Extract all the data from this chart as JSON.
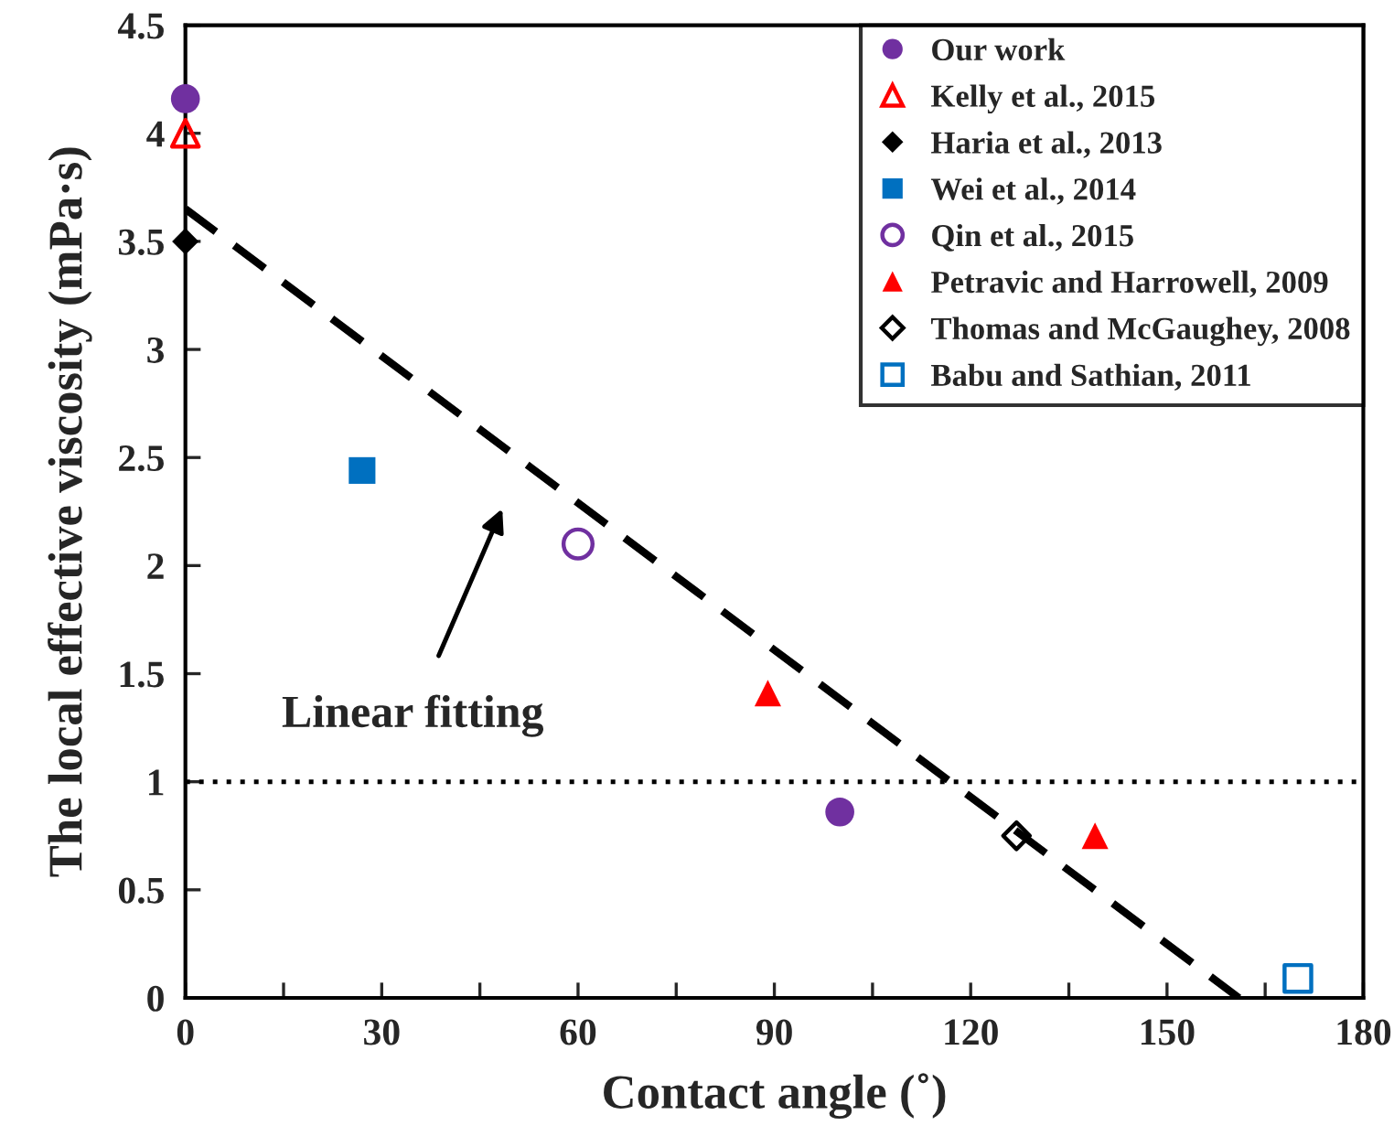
{
  "chart_data": {
    "type": "scatter",
    "xlabel": "Contact angle (˚)",
    "ylabel": "The local effective viscosity (mPa·s)",
    "xlim": [
      0,
      180
    ],
    "ylim": [
      0,
      4.5
    ],
    "xticks": [
      0,
      {
        "value": 15,
        "label": null
      },
      30,
      {
        "value": 45,
        "label": null
      },
      60,
      {
        "value": 75,
        "label": null
      },
      90,
      {
        "value": 105,
        "label": null
      },
      120,
      {
        "value": 135,
        "label": null
      },
      150,
      {
        "value": 165,
        "label": null
      },
      180
    ],
    "yticks": [
      0,
      0.5,
      1,
      1.5,
      2,
      2.5,
      3,
      3.5,
      4,
      4.5
    ],
    "grid": false,
    "legend": "top right",
    "series": [
      {
        "name": "Our work",
        "color": "#7030a0",
        "marker": "circle",
        "x": [
          0,
          100
        ],
        "values": [
          4.16,
          0.86
        ]
      },
      {
        "name": "Kelly et al., 2015",
        "color": "#ff0000",
        "marker": "triangle-open",
        "x": [
          0
        ],
        "values": [
          4.0
        ]
      },
      {
        "name": "Haria et al., 2013",
        "color": "#000000",
        "marker": "diamond",
        "x": [
          0
        ],
        "values": [
          3.5
        ]
      },
      {
        "name": "Wei et al., 2014",
        "color": "#0070c0",
        "marker": "square",
        "x": [
          27
        ],
        "values": [
          2.44
        ]
      },
      {
        "name": "Qin et al., 2015",
        "color": "#7030a0",
        "marker": "circle-open",
        "x": [
          60
        ],
        "values": [
          2.1
        ]
      },
      {
        "name": "Petravic and Harrowell, 2009",
        "color": "#ff0000",
        "marker": "triangle",
        "x": [
          89,
          139
        ],
        "values": [
          1.41,
          0.75
        ]
      },
      {
        "name": "Thomas and McGaughey, 2008",
        "color": "#000000",
        "marker": "diamond-open",
        "x": [
          127
        ],
        "values": [
          0.75
        ]
      },
      {
        "name": "Babu and Sathian, 2011",
        "color": "#0070c0",
        "marker": "square-open",
        "x": [
          170
        ],
        "values": [
          0.09
        ]
      },
      {
        "type": "line",
        "color": "#000000",
        "line_style": "dashed",
        "x": [
          0,
          161
        ],
        "values": [
          3.65,
          0
        ]
      }
    ],
    "ref_lines": [
      {
        "axis": "y",
        "value": 1,
        "color": "#000000",
        "line_style": "dotted"
      }
    ],
    "annotations": [
      "Linear fitting"
    ]
  }
}
